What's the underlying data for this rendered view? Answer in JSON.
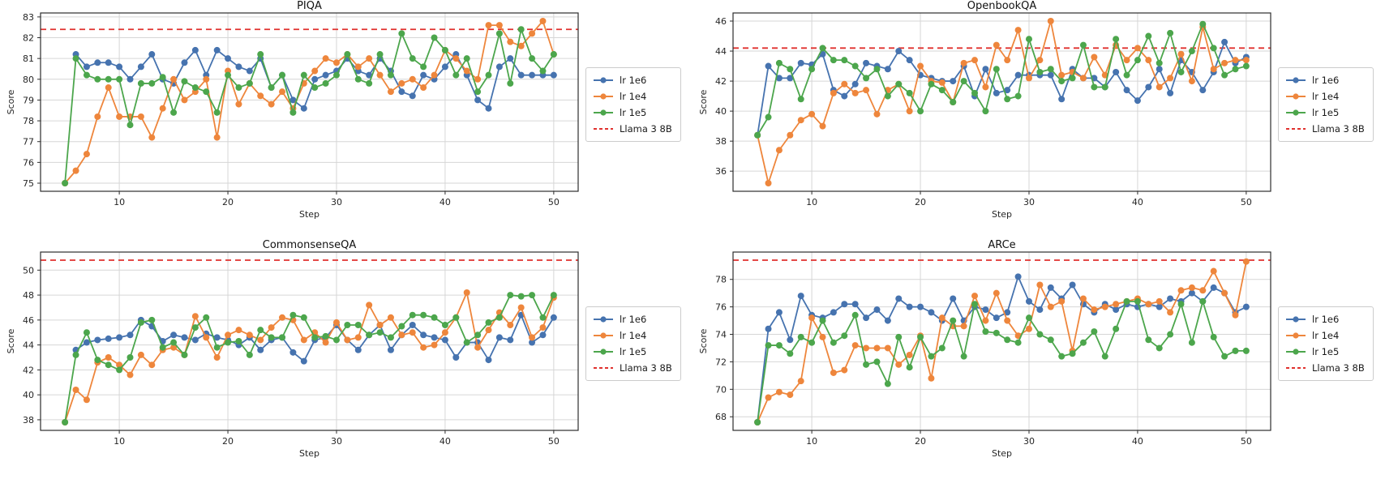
{
  "figure": {
    "background": "#ffffff",
    "grid_color": "#d6d6d6",
    "spine_color": "#2d2d2d"
  },
  "chart_data": [
    {
      "type": "line",
      "title": "PIQA",
      "xlabel": "Step",
      "ylabel": "Score",
      "x": [
        5,
        6,
        7,
        8,
        9,
        10,
        11,
        12,
        13,
        14,
        15,
        16,
        17,
        18,
        19,
        20,
        21,
        22,
        23,
        24,
        25,
        26,
        27,
        28,
        29,
        30,
        31,
        32,
        33,
        34,
        35,
        36,
        37,
        38,
        39,
        40,
        41,
        42,
        43,
        44,
        45,
        46,
        47,
        48,
        49,
        50
      ],
      "xticks": [
        10,
        20,
        30,
        40,
        50
      ],
      "yticks": [
        75,
        76,
        77,
        78,
        79,
        80,
        81,
        82,
        83
      ],
      "xlim": [
        2.75,
        52.25
      ],
      "ylim": [
        74.61,
        83.19
      ],
      "grid": true,
      "legend_position": "outside center right",
      "series": [
        {
          "name": "lr 1e6",
          "color": "#4673af",
          "values": [
            null,
            81.2,
            80.6,
            80.8,
            80.8,
            80.6,
            80.0,
            80.6,
            81.2,
            80.0,
            79.8,
            80.8,
            81.4,
            80.2,
            81.4,
            81.0,
            80.6,
            80.4,
            81.0,
            79.6,
            80.2,
            79.0,
            78.6,
            80.0,
            80.2,
            80.4,
            81.0,
            80.4,
            80.2,
            81.0,
            80.4,
            79.4,
            79.2,
            80.2,
            80.0,
            80.6,
            81.2,
            80.2,
            79.0,
            78.6,
            80.6,
            81.0,
            80.2,
            80.2,
            80.2,
            80.2
          ]
        },
        {
          "name": "lr 1e4",
          "color": "#ee863c",
          "values": [
            75.0,
            75.6,
            76.4,
            78.2,
            79.6,
            78.2,
            78.2,
            78.2,
            77.2,
            78.6,
            80.0,
            79.0,
            79.4,
            80.0,
            77.2,
            80.4,
            78.8,
            79.8,
            79.2,
            78.8,
            79.4,
            78.6,
            79.8,
            80.4,
            81.0,
            80.8,
            81.2,
            80.6,
            81.0,
            80.2,
            79.4,
            79.8,
            80.0,
            79.6,
            80.2,
            81.4,
            81.0,
            80.4,
            80.0,
            82.6,
            82.6,
            81.8,
            81.6,
            82.2,
            82.8,
            81.2
          ]
        },
        {
          "name": "lr 1e5",
          "color": "#4ca64c",
          "values": [
            75.0,
            81.0,
            80.2,
            80.0,
            80.0,
            80.0,
            77.8,
            79.8,
            79.8,
            80.1,
            78.4,
            79.9,
            79.6,
            79.4,
            78.4,
            80.2,
            79.6,
            79.8,
            81.2,
            79.6,
            80.2,
            78.4,
            80.2,
            79.6,
            79.8,
            80.2,
            81.2,
            80.0,
            79.8,
            81.2,
            80.2,
            82.2,
            81.0,
            80.6,
            82.0,
            81.4,
            80.2,
            81.0,
            79.4,
            80.2,
            82.2,
            79.8,
            82.4,
            81.0,
            80.4,
            81.2
          ]
        }
      ],
      "ref_line": {
        "label": "Llama 3 8B",
        "value": 82.4,
        "color": "#e0312e",
        "style": "dashed"
      }
    },
    {
      "type": "line",
      "title": "OpenbookQA",
      "xlabel": "Step",
      "ylabel": "Score",
      "x": [
        5,
        6,
        7,
        8,
        9,
        10,
        11,
        12,
        13,
        14,
        15,
        16,
        17,
        18,
        19,
        20,
        21,
        22,
        23,
        24,
        25,
        26,
        27,
        28,
        29,
        30,
        31,
        32,
        33,
        34,
        35,
        36,
        37,
        38,
        39,
        40,
        41,
        42,
        43,
        44,
        45,
        46,
        47,
        48,
        49,
        50
      ],
      "xticks": [
        10,
        20,
        30,
        40,
        50
      ],
      "yticks": [
        36,
        38,
        40,
        42,
        44,
        46
      ],
      "xlim": [
        2.75,
        52.25
      ],
      "ylim": [
        34.66,
        46.54
      ],
      "grid": true,
      "legend_position": "outside center right",
      "series": [
        {
          "name": "lr 1e6",
          "color": "#4673af",
          "values": [
            38.4,
            43.0,
            42.2,
            42.2,
            43.2,
            43.1,
            43.8,
            41.4,
            41.0,
            41.8,
            43.2,
            43.0,
            42.8,
            44.0,
            43.4,
            42.4,
            42.2,
            42.0,
            42.0,
            43.0,
            41.0,
            42.8,
            41.2,
            41.4,
            42.4,
            42.4,
            42.4,
            42.4,
            40.8,
            42.8,
            42.2,
            42.2,
            41.6,
            42.6,
            41.4,
            40.7,
            41.6,
            42.8,
            41.2,
            43.4,
            42.6,
            41.4,
            42.6,
            44.6,
            43.2,
            43.6
          ]
        },
        {
          "name": "lr 1e4",
          "color": "#ee863c",
          "values": [
            38.4,
            35.2,
            37.4,
            38.4,
            39.4,
            39.8,
            39.0,
            41.2,
            41.8,
            41.2,
            41.4,
            39.8,
            41.4,
            41.8,
            40.0,
            43.0,
            42.0,
            41.9,
            40.6,
            43.2,
            43.4,
            41.6,
            44.4,
            43.4,
            45.4,
            42.2,
            43.4,
            46.0,
            42.4,
            42.6,
            42.2,
            43.6,
            42.4,
            44.4,
            43.4,
            44.2,
            43.4,
            41.6,
            42.2,
            43.8,
            42.0,
            45.6,
            42.8,
            43.2,
            43.4,
            43.4
          ]
        },
        {
          "name": "lr 1e5",
          "color": "#4ca64c",
          "values": [
            38.4,
            39.6,
            43.2,
            42.8,
            40.8,
            42.8,
            44.2,
            43.4,
            43.4,
            43.0,
            42.2,
            42.8,
            41.0,
            41.8,
            41.2,
            40.0,
            41.8,
            41.4,
            40.6,
            42.0,
            41.2,
            40.0,
            42.8,
            40.8,
            41.0,
            44.8,
            42.6,
            42.8,
            42.0,
            42.2,
            44.4,
            41.6,
            41.6,
            44.8,
            42.4,
            43.4,
            45.0,
            43.2,
            45.2,
            42.6,
            44.0,
            45.8,
            44.2,
            42.4,
            42.8,
            43.0
          ]
        }
      ],
      "ref_line": {
        "label": "Llama 3 8B",
        "value": 44.2,
        "color": "#e0312e",
        "style": "dashed"
      }
    },
    {
      "type": "line",
      "title": "CommonsenseQA",
      "xlabel": "Step",
      "ylabel": "Score",
      "x": [
        5,
        6,
        7,
        8,
        9,
        10,
        11,
        12,
        13,
        14,
        15,
        16,
        17,
        18,
        19,
        20,
        21,
        22,
        23,
        24,
        25,
        26,
        27,
        28,
        29,
        30,
        31,
        32,
        33,
        34,
        35,
        36,
        37,
        38,
        39,
        40,
        41,
        42,
        43,
        44,
        45,
        46,
        47,
        48,
        49,
        50
      ],
      "xticks": [
        10,
        20,
        30,
        40,
        50
      ],
      "yticks": [
        38,
        40,
        42,
        44,
        46,
        48,
        50
      ],
      "xlim": [
        2.75,
        52.25
      ],
      "ylim": [
        37.15,
        51.45
      ],
      "grid": true,
      "legend_position": "outside center right",
      "series": [
        {
          "name": "lr 1e6",
          "color": "#4673af",
          "values": [
            null,
            43.6,
            44.2,
            44.4,
            44.5,
            44.6,
            44.8,
            46.0,
            45.5,
            44.3,
            44.8,
            44.6,
            44.4,
            44.9,
            44.6,
            44.4,
            44.0,
            44.6,
            43.6,
            44.4,
            44.6,
            43.4,
            42.7,
            44.4,
            44.6,
            45.6,
            44.4,
            43.6,
            44.8,
            45.6,
            43.6,
            44.8,
            45.6,
            44.8,
            44.6,
            44.4,
            43.0,
            44.2,
            44.2,
            42.8,
            44.6,
            44.4,
            46.4,
            44.2,
            44.8,
            46.2
          ]
        },
        {
          "name": "lr 1e4",
          "color": "#ee863c",
          "values": [
            37.8,
            40.4,
            39.6,
            42.6,
            43.0,
            42.4,
            41.6,
            43.2,
            42.4,
            43.6,
            43.8,
            43.2,
            46.3,
            44.6,
            43.0,
            44.8,
            45.2,
            44.8,
            44.4,
            45.4,
            46.2,
            46.0,
            44.4,
            45.0,
            44.2,
            45.8,
            44.4,
            44.6,
            47.2,
            45.6,
            46.2,
            44.8,
            45.0,
            43.8,
            44.0,
            45.0,
            46.2,
            48.2,
            43.8,
            45.2,
            46.6,
            45.6,
            47.0,
            44.6,
            45.4,
            47.8
          ]
        },
        {
          "name": "lr 1e5",
          "color": "#4ca64c",
          "values": [
            37.8,
            43.2,
            45.0,
            42.8,
            42.4,
            42.0,
            43.0,
            45.8,
            46.0,
            43.8,
            44.2,
            43.2,
            45.4,
            46.2,
            43.8,
            44.2,
            44.3,
            43.2,
            45.2,
            44.6,
            44.6,
            46.4,
            46.2,
            44.6,
            44.7,
            44.4,
            45.6,
            45.6,
            44.8,
            45.0,
            44.6,
            45.5,
            46.4,
            46.4,
            46.2,
            45.6,
            46.2,
            44.2,
            44.8,
            45.8,
            46.2,
            48.0,
            47.9,
            48.0,
            46.2,
            48.0
          ]
        }
      ],
      "ref_line": {
        "label": "Llama 3 8B",
        "value": 50.8,
        "color": "#e0312e",
        "style": "dashed"
      }
    },
    {
      "type": "line",
      "title": "ARCe",
      "xlabel": "Step",
      "ylabel": "Score",
      "x": [
        5,
        6,
        7,
        8,
        9,
        10,
        11,
        12,
        13,
        14,
        15,
        16,
        17,
        18,
        19,
        20,
        21,
        22,
        23,
        24,
        25,
        26,
        27,
        28,
        29,
        30,
        31,
        32,
        33,
        34,
        35,
        36,
        37,
        38,
        39,
        40,
        41,
        42,
        43,
        44,
        45,
        46,
        47,
        48,
        49,
        50
      ],
      "xticks": [
        10,
        20,
        30,
        40,
        50
      ],
      "yticks": [
        68,
        70,
        72,
        74,
        76,
        78
      ],
      "xlim": [
        2.75,
        52.25
      ],
      "ylim": [
        67.01,
        79.99
      ],
      "grid": true,
      "legend_position": "outside center right",
      "series": [
        {
          "name": "lr 1e6",
          "color": "#4673af",
          "values": [
            67.6,
            74.4,
            75.6,
            73.6,
            76.8,
            75.4,
            75.2,
            75.6,
            76.2,
            76.2,
            75.2,
            75.8,
            75.0,
            76.6,
            76.0,
            76.0,
            75.6,
            75.0,
            76.6,
            75.0,
            76.0,
            75.8,
            75.2,
            75.6,
            78.2,
            76.4,
            75.8,
            77.4,
            76.6,
            77.6,
            76.2,
            75.6,
            76.2,
            75.8,
            76.2,
            76.0,
            76.2,
            76.0,
            76.6,
            76.4,
            77.0,
            76.4,
            77.4,
            77.0,
            75.6,
            76.0
          ]
        },
        {
          "name": "lr 1e4",
          "color": "#ee863c",
          "values": [
            67.6,
            69.4,
            69.8,
            69.6,
            70.6,
            75.2,
            73.8,
            71.2,
            71.4,
            73.2,
            73.0,
            73.0,
            73.0,
            71.8,
            72.5,
            73.9,
            70.8,
            75.2,
            74.6,
            74.6,
            76.8,
            75.0,
            77.0,
            75.0,
            73.9,
            74.4,
            77.6,
            76.0,
            76.4,
            72.8,
            76.6,
            75.8,
            76.0,
            76.2,
            76.4,
            76.6,
            76.2,
            76.4,
            75.6,
            77.2,
            77.4,
            77.2,
            78.6,
            77.0,
            75.4,
            79.3
          ]
        },
        {
          "name": "lr 1e5",
          "color": "#4ca64c",
          "values": [
            67.6,
            73.2,
            73.2,
            72.6,
            73.8,
            73.4,
            75.0,
            73.4,
            73.9,
            75.4,
            71.8,
            72.0,
            70.4,
            73.8,
            71.6,
            73.8,
            72.4,
            73.0,
            75.0,
            72.4,
            76.2,
            74.2,
            74.1,
            73.6,
            73.4,
            75.2,
            74.0,
            73.6,
            72.4,
            72.6,
            73.4,
            74.2,
            72.4,
            74.4,
            76.4,
            76.4,
            73.6,
            73.0,
            74.0,
            76.2,
            73.4,
            76.4,
            73.8,
            72.4,
            72.8,
            72.8
          ]
        }
      ],
      "ref_line": {
        "label": "Llama 3 8B",
        "value": 79.4,
        "color": "#e0312e",
        "style": "dashed"
      }
    }
  ]
}
